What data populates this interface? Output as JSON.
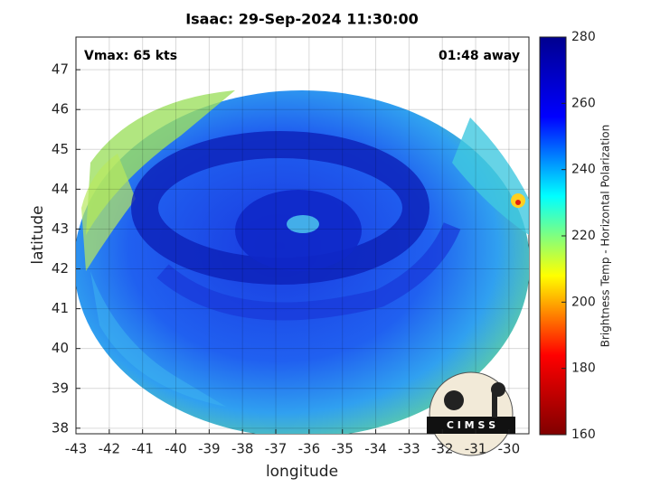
{
  "chart_data": {
    "type": "map",
    "title": "Isaac: 29-Sep-2024 11:30:00",
    "annotations": [
      "Vmax: 65 kts",
      "01:48 away"
    ],
    "x_label": "longitude",
    "y_label": "latitude",
    "xlim": [
      -43.0,
      -29.4
    ],
    "ylim": [
      37.86,
      47.82
    ],
    "xticks": [
      -43,
      -42,
      -41,
      -40,
      -39,
      -38,
      -37,
      -36,
      -35,
      -34,
      -33,
      -32,
      -31,
      -30
    ],
    "yticks": [
      38,
      39,
      40,
      41,
      42,
      43,
      44,
      45,
      46,
      47
    ],
    "grid": true,
    "colorbar": {
      "label": "Brightness Temp - Horizontal Polarization",
      "lim": [
        160,
        280
      ],
      "ticks": [
        160,
        180,
        200,
        220,
        240,
        260,
        280
      ],
      "colormap": [
        "#800000",
        "#ff0000",
        "#ffff00",
        "#00ffff",
        "#0000ff",
        "#00008f"
      ]
    },
    "logo": "C I M S S"
  }
}
